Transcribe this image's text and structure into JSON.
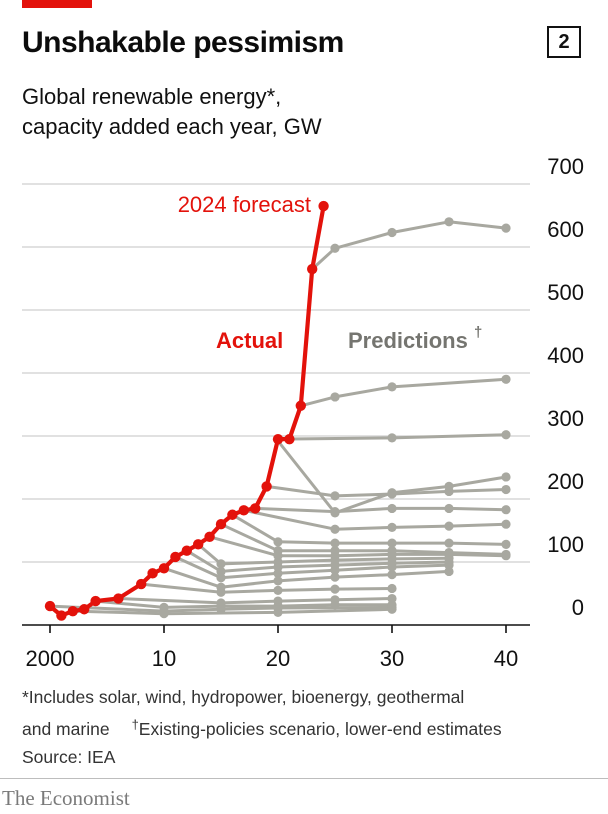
{
  "header": {
    "title": "Unshakable pessimism",
    "badge": "2",
    "subtitle_line1": "Global renewable energy*,",
    "subtitle_line2": "capacity added each year, GW"
  },
  "footnote": {
    "line1": "*Includes solar, wind, hydropower, bioenergy, geothermal",
    "line2a": "and marine",
    "dagger": "†",
    "line2b": "Existing-policies scenario, lower-end estimates",
    "source": "Source: IEA"
  },
  "brand": "The Economist",
  "colors": {
    "actual": "#e3120b",
    "predictions": "#a8a8a0",
    "grid": "#cfcfcf",
    "axis": "#111111",
    "accent": "#e3120b"
  },
  "chart_data": {
    "type": "line",
    "xlim": [
      2000,
      2040
    ],
    "ylim": [
      0,
      700
    ],
    "x_ticks": [
      2000,
      2010,
      2020,
      2030,
      2040
    ],
    "x_tick_labels": [
      "2000",
      "10",
      "20",
      "30",
      "40"
    ],
    "y_ticks": [
      0,
      100,
      200,
      300,
      400,
      500,
      600,
      700
    ],
    "y_tick_labels": [
      "0",
      "100",
      "200",
      "300",
      "400",
      "500",
      "600",
      "700"
    ],
    "grid": true,
    "annotations": {
      "actual": "Actual",
      "predictions": "Predictions",
      "predictions_mark": "†",
      "forecast": "2024 forecast"
    },
    "actual": {
      "x": [
        2000,
        2001,
        2002,
        2003,
        2004,
        2006,
        2008,
        2009,
        2010,
        2011,
        2012,
        2013,
        2014,
        2015,
        2016,
        2017,
        2018,
        2019,
        2020,
        2021,
        2022,
        2023,
        2024
      ],
      "y": [
        30,
        15,
        22,
        25,
        38,
        42,
        65,
        82,
        90,
        108,
        118,
        128,
        140,
        160,
        175,
        182,
        185,
        220,
        295,
        295,
        348,
        565,
        665
      ]
    },
    "predictions": [
      {
        "x": [
          2023,
          2025,
          2030,
          2035,
          2040
        ],
        "y": [
          565,
          598,
          623,
          640,
          630
        ]
      },
      {
        "x": [
          2022,
          2025,
          2030,
          2040
        ],
        "y": [
          348,
          362,
          378,
          390
        ]
      },
      {
        "x": [
          2020,
          2030,
          2040
        ],
        "y": [
          295,
          297,
          302
        ]
      },
      {
        "x": [
          2020,
          2025,
          2030,
          2035,
          2040
        ],
        "y": [
          292,
          178,
          210,
          220,
          235
        ]
      },
      {
        "x": [
          2019,
          2025,
          2030,
          2035,
          2040
        ],
        "y": [
          220,
          205,
          208,
          212,
          215
        ]
      },
      {
        "x": [
          2018,
          2025,
          2030,
          2035,
          2040
        ],
        "y": [
          185,
          180,
          185,
          185,
          183
        ]
      },
      {
        "x": [
          2017,
          2025,
          2030,
          2035,
          2040
        ],
        "y": [
          182,
          152,
          155,
          157,
          160
        ]
      },
      {
        "x": [
          2016,
          2020,
          2025,
          2030,
          2035,
          2040
        ],
        "y": [
          175,
          132,
          130,
          130,
          130,
          128
        ]
      },
      {
        "x": [
          2015,
          2020,
          2025,
          2030,
          2035,
          2040
        ],
        "y": [
          160,
          118,
          118,
          118,
          115,
          112
        ]
      },
      {
        "x": [
          2014,
          2020,
          2025,
          2030,
          2035,
          2040
        ],
        "y": [
          140,
          110,
          110,
          112,
          112,
          110
        ]
      },
      {
        "x": [
          2013,
          2015,
          2020,
          2025,
          2030,
          2035
        ],
        "y": [
          128,
          97,
          100,
          103,
          105,
          106
        ]
      },
      {
        "x": [
          2012,
          2015,
          2020,
          2025,
          2030,
          2035
        ],
        "y": [
          118,
          85,
          92,
          95,
          98,
          100
        ]
      },
      {
        "x": [
          2011,
          2015,
          2020,
          2025,
          2030,
          2035
        ],
        "y": [
          108,
          75,
          82,
          87,
          92,
          95
        ]
      },
      {
        "x": [
          2010,
          2015,
          2020,
          2025,
          2030,
          2035
        ],
        "y": [
          90,
          60,
          70,
          76,
          80,
          85
        ]
      },
      {
        "x": [
          2008,
          2015,
          2020,
          2025,
          2030
        ],
        "y": [
          65,
          52,
          55,
          57,
          58
        ]
      },
      {
        "x": [
          2006,
          2015,
          2020,
          2025,
          2030
        ],
        "y": [
          42,
          35,
          38,
          40,
          42
        ]
      },
      {
        "x": [
          2004,
          2010,
          2015,
          2020,
          2025,
          2030
        ],
        "y": [
          38,
          28,
          30,
          30,
          32,
          32
        ]
      },
      {
        "x": [
          2000,
          2010,
          2015,
          2020,
          2030
        ],
        "y": [
          30,
          22,
          25,
          27,
          28
        ]
      },
      {
        "x": [
          2002,
          2010,
          2020,
          2030
        ],
        "y": [
          22,
          18,
          20,
          25
        ]
      }
    ]
  }
}
